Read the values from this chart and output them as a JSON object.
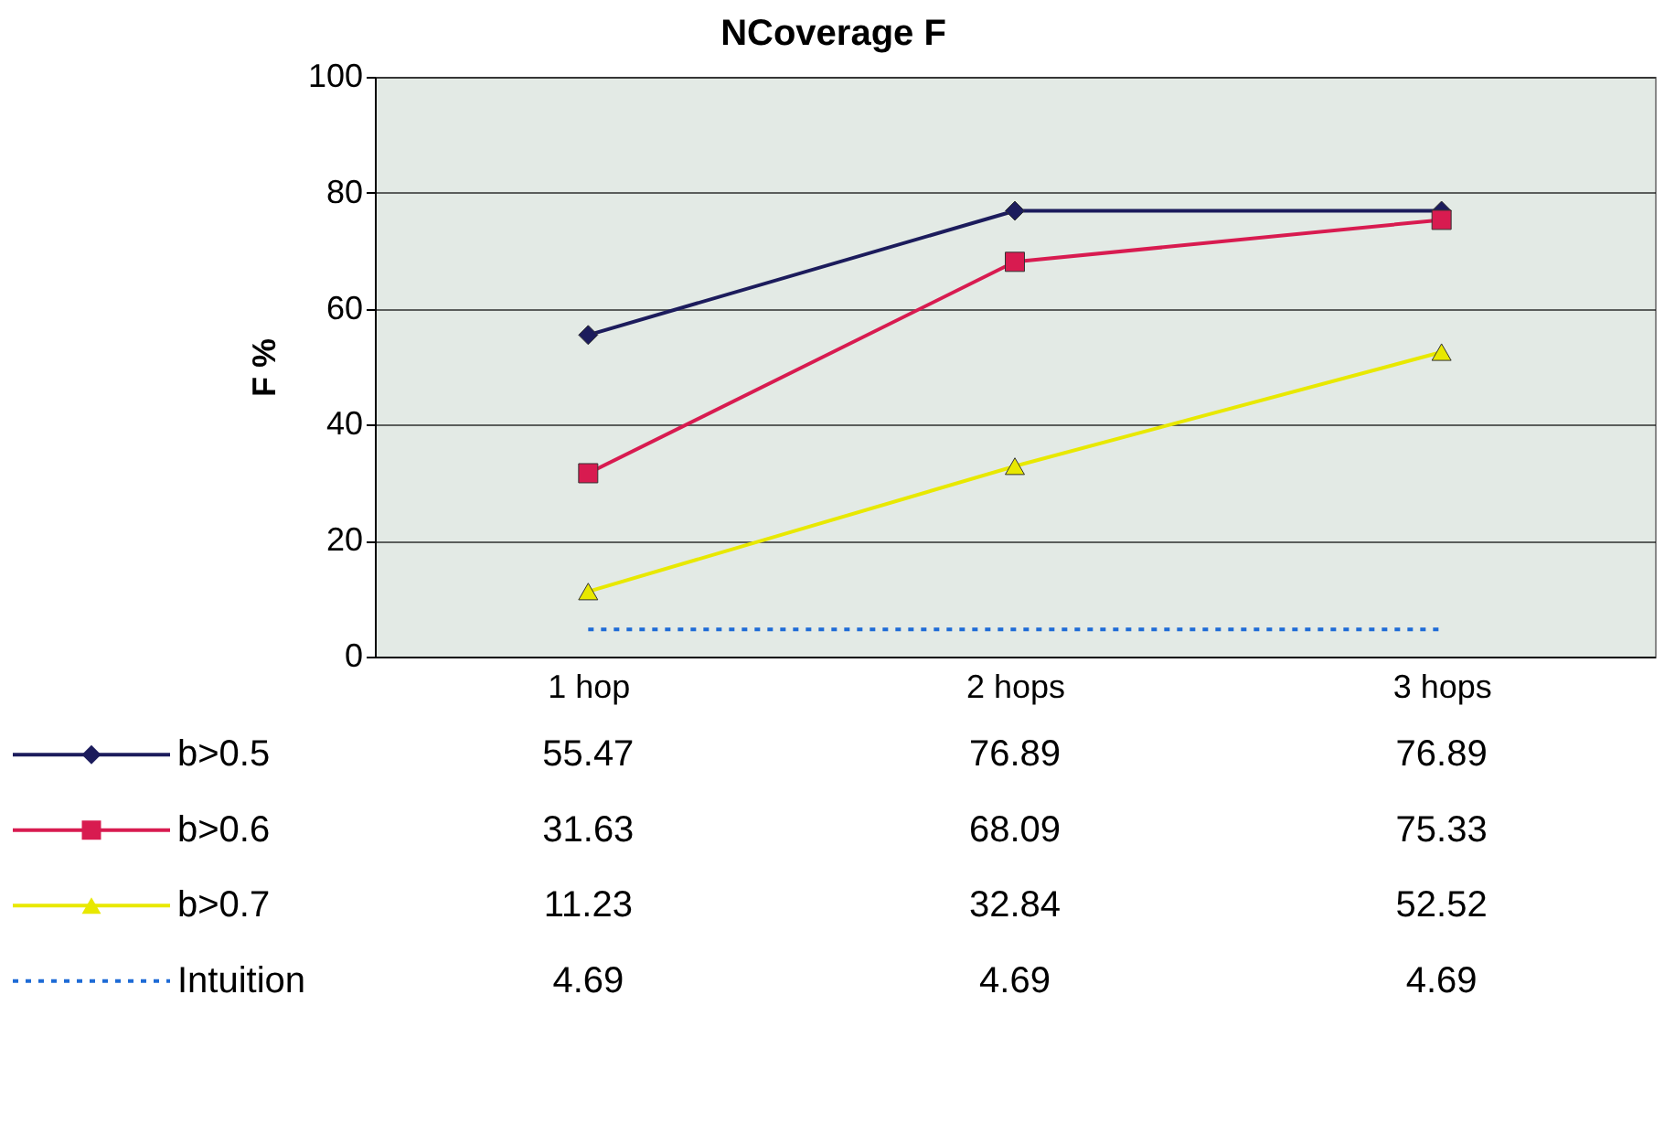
{
  "chart_data": {
    "type": "line",
    "title": "NCoverage F",
    "ylabel": "F %",
    "categories": [
      "1 hop",
      "2 hops",
      "3 hops"
    ],
    "series": [
      {
        "name": "b>0.5",
        "color": "#1c1c5c",
        "marker": "diamond",
        "line_style": "solid",
        "values": [
          55.47,
          76.89,
          76.89
        ]
      },
      {
        "name": "b>0.6",
        "color": "#d81b50",
        "marker": "square",
        "line_style": "solid",
        "values": [
          31.63,
          68.09,
          75.33
        ]
      },
      {
        "name": "b>0.7",
        "color": "#e8e800",
        "marker": "triangle",
        "line_style": "solid",
        "values": [
          11.23,
          32.84,
          52.52
        ]
      },
      {
        "name": "Intuition",
        "color": "#1e6bd6",
        "marker": "none",
        "line_style": "dotted",
        "values": [
          4.69,
          4.69,
          4.69
        ]
      }
    ],
    "ylim": [
      0,
      100
    ],
    "yticks": [
      0,
      20,
      40,
      60,
      80,
      100
    ],
    "grid": "y",
    "legend": "bottom left",
    "data_labels": true
  }
}
